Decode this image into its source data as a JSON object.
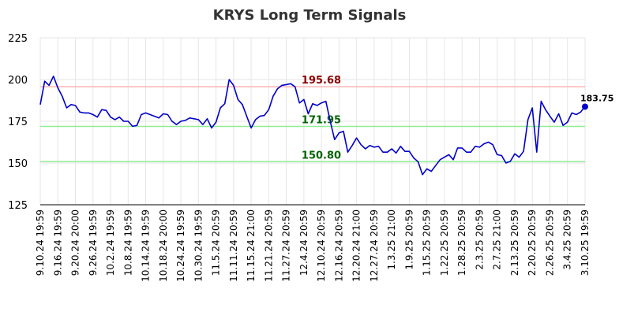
{
  "chart_data": {
    "type": "line",
    "title": "KRYS Long Term Signals",
    "xlabel": "",
    "ylabel": "",
    "ylim": [
      125,
      225
    ],
    "yticks": [
      125,
      150,
      175,
      200,
      225
    ],
    "grid": true,
    "x_tick_labels": [
      "9.10.24 19:59",
      "9.16.24 19:59",
      "9.20.24 20:00",
      "9.26.24 19:59",
      "10.2.24 19:59",
      "10.8.24 19:59",
      "10.14.24 19:59",
      "10.18.24 20:00",
      "10.24.24 19:59",
      "10.30.24 19:59",
      "11.5.24 20:59",
      "11.11.24 20:59",
      "11.15.24 21:00",
      "11.21.24 20:59",
      "11.27.24 20:59",
      "12.4.24 20:59",
      "12.10.24 20:59",
      "12.16.24 20:59",
      "12.20.24 21:00",
      "12.27.24 20:59",
      "1.3.25 21:00",
      "1.9.25 20:59",
      "1.15.25 20:59",
      "1.22.25 20:59",
      "1.28.25 20:59",
      "2.3.25 20:59",
      "2.7.25 21:00",
      "2.13.25 20:59",
      "2.20.25 20:59",
      "2.26.25 20:59",
      "3.4.25 20:59",
      "3.10.25 19:59"
    ],
    "series": [
      {
        "color": "#0000cc",
        "values": [
          185.0,
          199.0,
          196.5,
          202.0,
          195.0,
          190.0,
          183.0,
          185.0,
          184.5,
          180.5,
          180.0,
          180.0,
          179.0,
          177.5,
          182.0,
          181.5,
          177.5,
          176.0,
          177.5,
          175.0,
          175.0,
          172.0,
          172.5,
          179.0,
          180.0,
          179.0,
          178.0,
          177.0,
          179.5,
          179.0,
          175.0,
          173.0,
          175.0,
          175.5,
          177.0,
          176.5,
          176.0,
          173.0,
          176.5,
          171.0,
          174.5,
          183.0,
          185.5,
          200.0,
          196.5,
          188.0,
          185.0,
          178.0,
          171.0,
          176.0,
          178.0,
          178.5,
          182.0,
          190.0,
          194.5,
          196.5,
          197.0,
          197.5,
          195.68,
          186.0,
          188.0,
          179.5,
          185.5,
          184.5,
          186.0,
          187.0,
          175.0,
          164.0,
          168.0,
          169.0,
          156.5,
          160.5,
          165.0,
          161.0,
          158.5,
          160.5,
          159.5,
          160.0,
          156.5,
          156.5,
          158.5,
          156.0,
          160.0,
          157.0,
          157.0,
          153.0,
          150.8,
          143.0,
          146.5,
          145.0,
          148.5,
          152.0,
          153.5,
          155.0,
          152.0,
          159.0,
          159.0,
          156.5,
          156.5,
          160.0,
          159.5,
          161.5,
          162.5,
          161.0,
          155.0,
          154.5,
          150.0,
          151.0,
          155.5,
          153.5,
          157.0,
          176.0,
          183.0,
          156.5,
          187.0,
          182.0,
          178.0,
          174.5,
          179.5,
          172.5,
          174.5,
          180.0,
          179.0,
          180.5,
          183.75
        ]
      }
    ],
    "levels": [
      {
        "value": 195.68,
        "label": "195.68",
        "line_color": "#ffb3b3",
        "label_color": "#8b0000"
      },
      {
        "value": 171.95,
        "label": "171.95",
        "line_color": "#90ee90",
        "label_color": "#006400"
      },
      {
        "value": 150.8,
        "label": "150.80",
        "line_color": "#90ee90",
        "label_color": "#006400"
      }
    ],
    "last_value_label": "183.75"
  }
}
